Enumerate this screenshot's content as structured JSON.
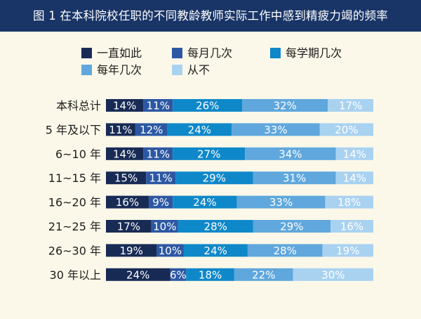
{
  "title": "图 1 在本科院校任职的不同教龄教师实际工作中感到精疲力竭的频率",
  "colors": {
    "title_bg": "#193567",
    "background": "#fbf8e9"
  },
  "chart_data": {
    "type": "bar",
    "orientation": "horizontal",
    "stacked": true,
    "unit": "%",
    "xlim": [
      0,
      100
    ],
    "grid": false,
    "legend_position": "top",
    "categories": [
      "本科总计",
      "5 年及以下",
      "6~10 年",
      "11~15 年",
      "16~20 年",
      "21~25 年",
      "26~30 年",
      "30 年以上"
    ],
    "series": [
      {
        "name": "一直如此",
        "color": "#172b55",
        "text_color": "#ffffff",
        "values": [
          14,
          11,
          14,
          15,
          16,
          17,
          19,
          24
        ]
      },
      {
        "name": "每月几次",
        "color": "#2c58a3",
        "text_color": "#ffffff",
        "values": [
          11,
          12,
          11,
          11,
          9,
          10,
          10,
          6
        ]
      },
      {
        "name": "每学期几次",
        "color": "#0f88c9",
        "text_color": "#ffffff",
        "values": [
          26,
          24,
          27,
          29,
          24,
          28,
          24,
          18
        ]
      },
      {
        "name": "每年几次",
        "color": "#5fa7dd",
        "text_color": "#ffffff",
        "values": [
          32,
          33,
          34,
          31,
          33,
          29,
          28,
          22
        ]
      },
      {
        "name": "从不",
        "color": "#a9d2f1",
        "text_color": "#ffffff",
        "values": [
          17,
          20,
          14,
          14,
          18,
          16,
          19,
          30
        ]
      }
    ]
  }
}
